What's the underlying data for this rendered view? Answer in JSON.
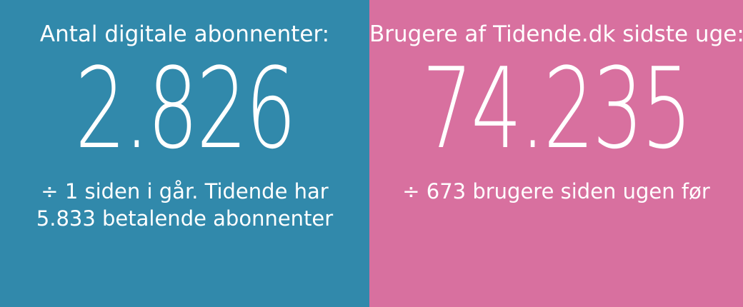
{
  "left_panel": {
    "label": "Antal digitale abonnenter:",
    "value": "2.826",
    "sub_line_1": "÷ 1 siden i går. Tidende har",
    "sub_line_2": "5.833 betalende abonnenter"
  },
  "right_panel": {
    "label": "Brugere af Tidende.dk sidste uge:",
    "value": "74.235",
    "sub_line_1": "÷ 673 brugere siden ugen før"
  },
  "colors": {
    "left_background": "#3189AB",
    "right_background": "#D8709F",
    "text": "#FFFFFF"
  }
}
